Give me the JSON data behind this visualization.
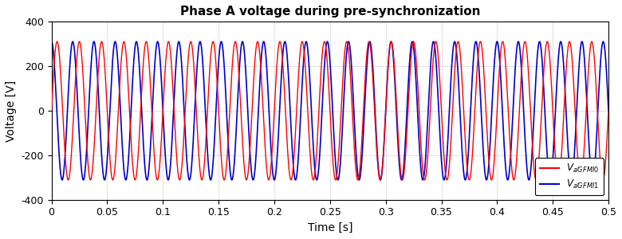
{
  "title": "Phase A voltage during pre-synchronization",
  "xlabel": "Time [s]",
  "ylabel": "Voltage [V]",
  "xlim": [
    0,
    0.5
  ],
  "ylim": [
    -400,
    400
  ],
  "yticks": [
    -400,
    -200,
    0,
    200,
    400
  ],
  "xticks": [
    0,
    0.05,
    0.1,
    0.15,
    0.2,
    0.25,
    0.3,
    0.35,
    0.4,
    0.45,
    0.5
  ],
  "amplitude": 311.0,
  "freq0": 50.0,
  "freq1": 52.5,
  "phase0_init": 1.5,
  "phase1_init": 0.0,
  "color_gfmi0": "#ff0000",
  "color_gfmi1": "#0000cc",
  "lw_gfmi0": 1.0,
  "lw_gfmi1": 1.2,
  "title_fontsize": 11,
  "label_fontsize": 10,
  "tick_fontsize": 9,
  "grid_color": "#d3d3d3",
  "grid_alpha": 1.0,
  "grid_linewidth": 0.5,
  "background_color": "#ffffff"
}
